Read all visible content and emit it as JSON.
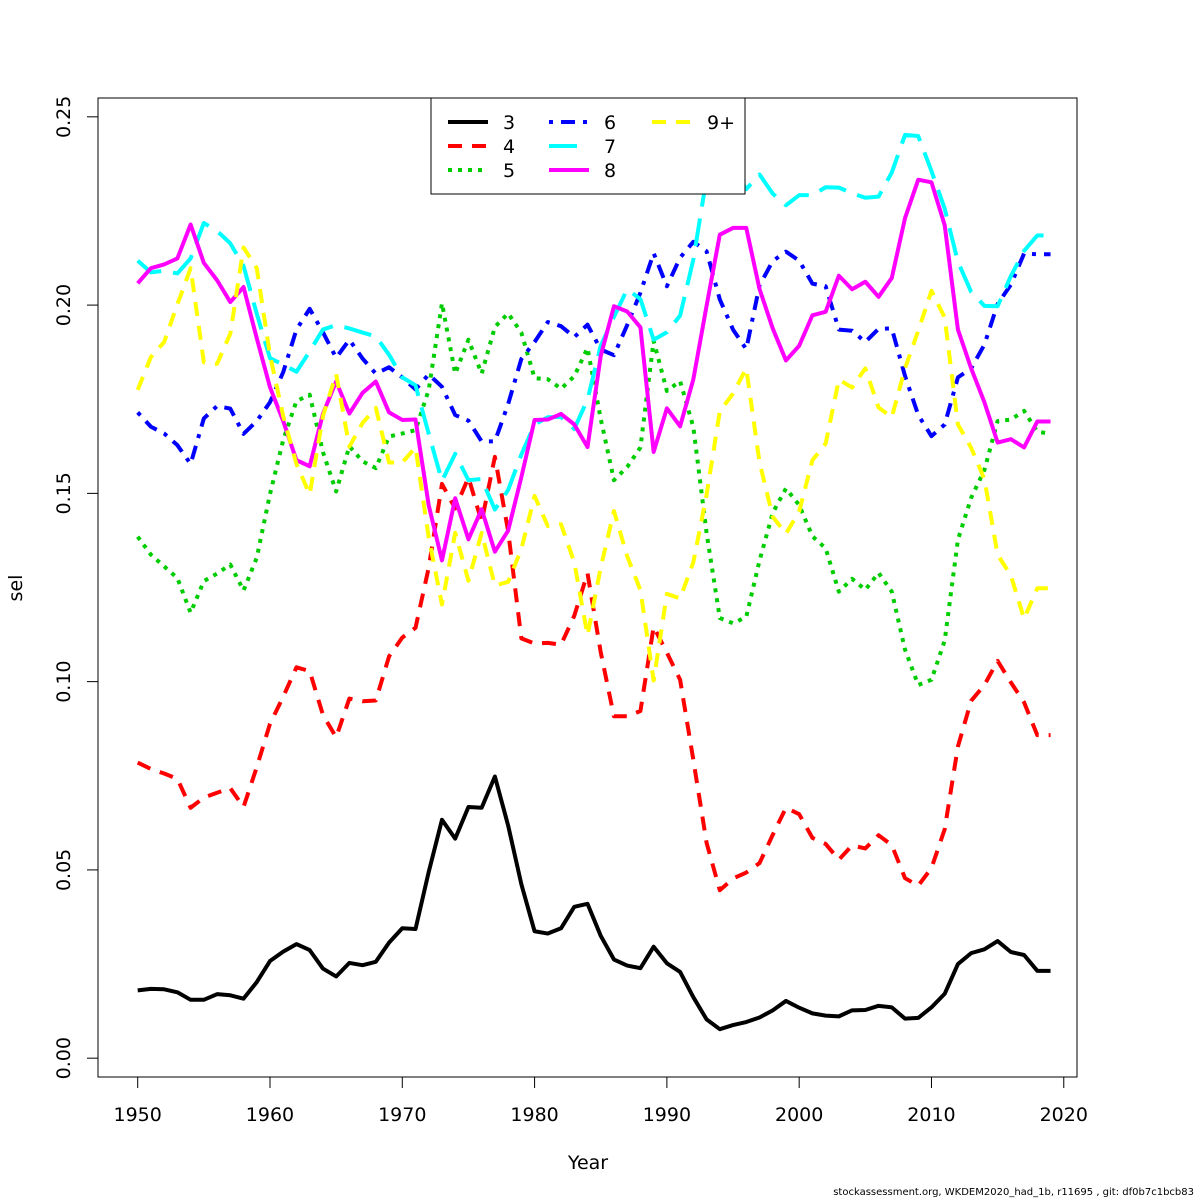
{
  "chart_data": {
    "type": "line",
    "title": "",
    "xlabel": "Year",
    "ylabel": "sel",
    "xlim": [
      1947,
      2021
    ],
    "ylim": [
      -0.005,
      0.255
    ],
    "xticks": [
      1950,
      1960,
      1970,
      1980,
      1990,
      2000,
      2010,
      2020
    ],
    "yticks": [
      0.0,
      0.05,
      0.1,
      0.15,
      0.2,
      0.25
    ],
    "ytick_labels": [
      "0.00",
      "0.05",
      "0.10",
      "0.15",
      "0.20",
      "0.25"
    ],
    "grid": false,
    "legend_position": "top-center",
    "x": [
      1950,
      1951,
      1952,
      1953,
      1954,
      1955,
      1956,
      1957,
      1958,
      1959,
      1960,
      1961,
      1962,
      1963,
      1964,
      1965,
      1966,
      1967,
      1968,
      1969,
      1970,
      1971,
      1972,
      1973,
      1974,
      1975,
      1976,
      1977,
      1978,
      1979,
      1980,
      1981,
      1982,
      1983,
      1984,
      1985,
      1986,
      1987,
      1988,
      1989,
      1990,
      1991,
      1992,
      1993,
      1994,
      1995,
      1996,
      1997,
      1998,
      1999,
      2000,
      2001,
      2002,
      2003,
      2004,
      2005,
      2006,
      2007,
      2008,
      2009,
      2010,
      2011,
      2012,
      2013,
      2014,
      2015,
      2016,
      2017,
      2018,
      2019
    ],
    "series": [
      {
        "name": "3",
        "color": "#000000",
        "dash": "solid",
        "values": [
          0.018,
          0.0184,
          0.0183,
          0.0175,
          0.0155,
          0.0155,
          0.017,
          0.0167,
          0.0158,
          0.0202,
          0.0258,
          0.0283,
          0.0303,
          0.0287,
          0.0238,
          0.0217,
          0.0253,
          0.0247,
          0.0256,
          0.0307,
          0.0345,
          0.0343,
          0.0495,
          0.0633,
          0.0583,
          0.0667,
          0.0665,
          0.0748,
          0.0618,
          0.0462,
          0.0337,
          0.0331,
          0.0345,
          0.0402,
          0.041,
          0.0325,
          0.0262,
          0.0246,
          0.0239,
          0.0296,
          0.0252,
          0.0229,
          0.0162,
          0.0103,
          0.0077,
          0.0088,
          0.0096,
          0.0108,
          0.0127,
          0.0152,
          0.0134,
          0.0119,
          0.0113,
          0.0111,
          0.0127,
          0.0128,
          0.0139,
          0.0135,
          0.0105,
          0.0107,
          0.0135,
          0.0171,
          0.025,
          0.0279,
          0.0289,
          0.0311,
          0.0282,
          0.0274,
          0.0232,
          0.0232
        ]
      },
      {
        "name": "4",
        "color": "#ff0000",
        "dash": "dashed",
        "values": [
          0.0785,
          0.0768,
          0.0756,
          0.0742,
          0.0665,
          0.0692,
          0.0705,
          0.0717,
          0.0667,
          0.0773,
          0.0888,
          0.096,
          0.1038,
          0.1028,
          0.0912,
          0.0852,
          0.0955,
          0.0948,
          0.095,
          0.1067,
          0.1117,
          0.1143,
          0.1303,
          0.1525,
          0.146,
          0.1542,
          0.1425,
          0.1597,
          0.14,
          0.1115,
          0.1101,
          0.1103,
          0.1098,
          0.1175,
          0.1288,
          0.1078,
          0.0908,
          0.0908,
          0.0922,
          0.1146,
          0.1077,
          0.1005,
          0.0792,
          0.0572,
          0.0446,
          0.0477,
          0.0493,
          0.0518,
          0.0593,
          0.0665,
          0.0648,
          0.0585,
          0.0569,
          0.0527,
          0.0565,
          0.0557,
          0.0592,
          0.0566,
          0.0478,
          0.0458,
          0.0505,
          0.0608,
          0.0828,
          0.0949,
          0.0991,
          0.1055,
          0.0998,
          0.0945,
          0.0858,
          0.0858
        ]
      },
      {
        "name": "5",
        "color": "#00cd00",
        "dash": "dotted",
        "values": [
          0.1385,
          0.1337,
          0.1306,
          0.1275,
          0.1183,
          0.1267,
          0.1287,
          0.1311,
          0.1242,
          0.1329,
          0.1498,
          0.1642,
          0.1745,
          0.1762,
          0.161,
          0.1505,
          0.1625,
          0.1585,
          0.1567,
          0.1651,
          0.1659,
          0.1668,
          0.1775,
          0.2005,
          0.1818,
          0.1908,
          0.1818,
          0.1942,
          0.1978,
          0.1927,
          0.1806,
          0.1803,
          0.1778,
          0.1811,
          0.1886,
          0.1698,
          0.1535,
          0.157,
          0.1622,
          0.1905,
          0.1772,
          0.1798,
          0.1676,
          0.1395,
          0.1169,
          0.1155,
          0.1172,
          0.1321,
          0.1448,
          0.1513,
          0.1469,
          0.1386,
          0.1354,
          0.1239,
          0.1273,
          0.1244,
          0.1289,
          0.1239,
          0.1085,
          0.0991,
          0.1005,
          0.1109,
          0.1377,
          0.1488,
          0.1562,
          0.1692,
          0.1696,
          0.1719,
          0.1664,
          0.1658
        ]
      },
      {
        "name": "6",
        "color": "#0000ff",
        "dash": "dotdash",
        "values": [
          0.1715,
          0.1677,
          0.1659,
          0.1628,
          0.1578,
          0.1699,
          0.1732,
          0.1725,
          0.1658,
          0.1692,
          0.1742,
          0.1822,
          0.1935,
          0.199,
          0.1928,
          0.186,
          0.1908,
          0.1858,
          0.1818,
          0.1835,
          0.1808,
          0.1776,
          0.1816,
          0.1783,
          0.1708,
          0.1693,
          0.1638,
          0.1638,
          0.1737,
          0.1857,
          0.1902,
          0.1955,
          0.1944,
          0.1915,
          0.1948,
          0.1882,
          0.1867,
          0.1947,
          0.2033,
          0.2138,
          0.205,
          0.2126,
          0.2168,
          0.2143,
          0.2015,
          0.1935,
          0.1883,
          0.2052,
          0.2117,
          0.2142,
          0.2118,
          0.2057,
          0.205,
          0.1935,
          0.1932,
          0.1902,
          0.1937,
          0.1938,
          0.1812,
          0.1708,
          0.1652,
          0.1683,
          0.1808,
          0.1832,
          0.1895,
          0.2003,
          0.2054,
          0.2137,
          0.2135,
          0.2135
        ]
      },
      {
        "name": "7",
        "color": "#00ffff",
        "dash": "longdash",
        "values": [
          0.2118,
          0.2087,
          0.2091,
          0.2084,
          0.2124,
          0.2218,
          0.2197,
          0.2164,
          0.2104,
          0.1977,
          0.1859,
          0.1842,
          0.1823,
          0.1877,
          0.1935,
          0.1947,
          0.1938,
          0.1927,
          0.1917,
          0.1868,
          0.1808,
          0.1787,
          0.1658,
          0.1533,
          0.1605,
          0.1535,
          0.1538,
          0.1457,
          0.1509,
          0.1603,
          0.1683,
          0.1702,
          0.1703,
          0.1671,
          0.1749,
          0.1892,
          0.1969,
          0.2042,
          0.2016,
          0.1908,
          0.1928,
          0.1972,
          0.2121,
          0.2338,
          0.2402,
          0.2365,
          0.2308,
          0.2347,
          0.2296,
          0.2265,
          0.2292,
          0.2292,
          0.2313,
          0.2312,
          0.2297,
          0.2285,
          0.2288,
          0.2352,
          0.2452,
          0.2449,
          0.2356,
          0.2256,
          0.2115,
          0.2035,
          0.1998,
          0.1997,
          0.2077,
          0.2144,
          0.2185,
          0.2185
        ]
      },
      {
        "name": "8",
        "color": "#ff00ff",
        "dash": "solid",
        "values": [
          0.2058,
          0.2098,
          0.2108,
          0.2124,
          0.2214,
          0.2112,
          0.2066,
          0.2008,
          0.2048,
          0.1912,
          0.1782,
          0.1692,
          0.1588,
          0.1572,
          0.1711,
          0.1797,
          0.1712,
          0.1767,
          0.1797,
          0.1715,
          0.1695,
          0.1696,
          0.1468,
          0.1322,
          0.1487,
          0.1378,
          0.1458,
          0.1345,
          0.1401,
          0.1543,
          0.1695,
          0.1696,
          0.1711,
          0.1683,
          0.1623,
          0.1865,
          0.1997,
          0.1983,
          0.1941,
          0.161,
          0.1726,
          0.1678,
          0.1803,
          0.1998,
          0.2187,
          0.2205,
          0.2205,
          0.2043,
          0.1938,
          0.1853,
          0.1892,
          0.1973,
          0.1982,
          0.2078,
          0.2042,
          0.2062,
          0.2022,
          0.2072,
          0.2231,
          0.2333,
          0.2326,
          0.2212,
          0.1935,
          0.1832,
          0.1742,
          0.1635,
          0.1644,
          0.1622,
          0.1691,
          0.1691
        ]
      },
      {
        "name": "9+",
        "color": "#ffff00",
        "dash": "dashed",
        "values": [
          0.1775,
          0.1862,
          0.1902,
          0.2002,
          0.2098,
          0.1848,
          0.1844,
          0.1924,
          0.2153,
          0.2098,
          0.1867,
          0.1705,
          0.1578,
          0.1497,
          0.1705,
          0.1817,
          0.1624,
          0.1687,
          0.1727,
          0.1582,
          0.1582,
          0.1622,
          0.1382,
          0.1205,
          0.1395,
          0.1268,
          0.1395,
          0.1255,
          0.1265,
          0.1352,
          0.1493,
          0.1413,
          0.1418,
          0.1317,
          0.1123,
          0.1303,
          0.1453,
          0.1333,
          0.1243,
          0.1003,
          0.1233,
          0.1221,
          0.1317,
          0.1496,
          0.1718,
          0.1765,
          0.1832,
          0.1583,
          0.1438,
          0.1393,
          0.1452,
          0.1588,
          0.1632,
          0.1802,
          0.1781,
          0.1832,
          0.1728,
          0.1702,
          0.1832,
          0.1932,
          0.2038,
          0.1967,
          0.1683,
          0.1621,
          0.1538,
          0.1337,
          0.1282,
          0.1167,
          0.1248,
          0.1248
        ]
      }
    ]
  },
  "footnote": "stockassessment.org, WKDEM2020_had_1b, r11695 , git: df0b7c1bcb83"
}
